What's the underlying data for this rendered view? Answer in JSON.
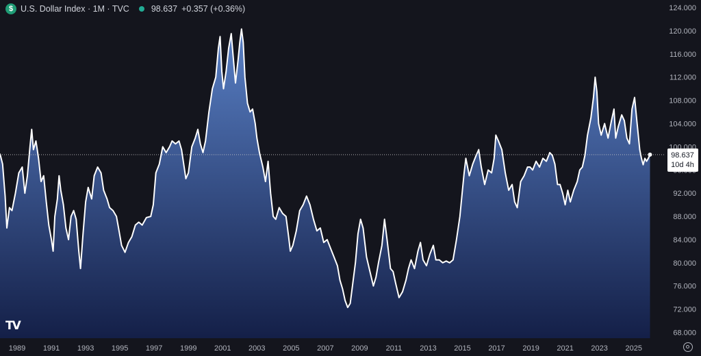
{
  "header": {
    "symbol_icon": "$",
    "title": "U.S. Dollar Index · 1M · TVC",
    "price": "98.637",
    "change": "+0.357 (+0.36%)"
  },
  "price_label": {
    "value": "98.637",
    "countdown": "10d 4h"
  },
  "logo_text": "TV",
  "colors": {
    "background": "#14151d",
    "line": "#ffffff",
    "area_top": "#5d86cf",
    "area_bottom": "#14204a",
    "axis_text": "#b2b5be",
    "status_dot": "#22ab94"
  },
  "chart_data": {
    "type": "area",
    "xlim": [
      1988.0,
      2026.85
    ],
    "ylim": [
      67.0,
      125.3
    ],
    "y_ticks": [
      "68.000",
      "72.000",
      "76.000",
      "80.000",
      "84.000",
      "88.000",
      "92.000",
      "96.000",
      "100.000",
      "104.000",
      "108.000",
      "112.000",
      "116.000",
      "120.000",
      "124.000"
    ],
    "x_ticks": [
      "1989",
      "1991",
      "1993",
      "1995",
      "1997",
      "1999",
      "2001",
      "2003",
      "2005",
      "2007",
      "2009",
      "2011",
      "2013",
      "2015",
      "2017",
      "2019",
      "2021",
      "2023",
      "2025"
    ],
    "last_value": 98.637,
    "series": [
      {
        "points": [
          [
            1988.0,
            98.8
          ],
          [
            1988.15,
            97.0
          ],
          [
            1988.3,
            91.5
          ],
          [
            1988.4,
            86.0
          ],
          [
            1988.55,
            89.5
          ],
          [
            1988.7,
            89.0
          ],
          [
            1988.9,
            92.0
          ],
          [
            1989.1,
            95.5
          ],
          [
            1989.3,
            96.5
          ],
          [
            1989.45,
            92.0
          ],
          [
            1989.6,
            95.0
          ],
          [
            1989.75,
            100.0
          ],
          [
            1989.85,
            103.0
          ],
          [
            1989.95,
            99.5
          ],
          [
            1990.1,
            101.0
          ],
          [
            1990.25,
            98.0
          ],
          [
            1990.4,
            94.0
          ],
          [
            1990.55,
            95.0
          ],
          [
            1990.7,
            90.5
          ],
          [
            1990.85,
            86.5
          ],
          [
            1991.0,
            84.0
          ],
          [
            1991.1,
            82.0
          ],
          [
            1991.2,
            88.0
          ],
          [
            1991.35,
            91.0
          ],
          [
            1991.45,
            95.0
          ],
          [
            1991.55,
            92.5
          ],
          [
            1991.7,
            90.0
          ],
          [
            1991.85,
            86.0
          ],
          [
            1992.0,
            84.0
          ],
          [
            1992.15,
            88.0
          ],
          [
            1992.3,
            89.0
          ],
          [
            1992.45,
            87.5
          ],
          [
            1992.6,
            82.0
          ],
          [
            1992.7,
            79.0
          ],
          [
            1992.85,
            85.0
          ],
          [
            1993.0,
            90.5
          ],
          [
            1993.15,
            93.0
          ],
          [
            1993.35,
            91.0
          ],
          [
            1993.5,
            95.0
          ],
          [
            1993.7,
            96.5
          ],
          [
            1993.9,
            95.5
          ],
          [
            1994.05,
            92.5
          ],
          [
            1994.25,
            91.0
          ],
          [
            1994.4,
            89.5
          ],
          [
            1994.6,
            89.0
          ],
          [
            1994.8,
            88.0
          ],
          [
            1994.95,
            85.5
          ],
          [
            1995.1,
            83.0
          ],
          [
            1995.3,
            81.8
          ],
          [
            1995.5,
            83.5
          ],
          [
            1995.7,
            84.5
          ],
          [
            1995.9,
            86.5
          ],
          [
            1996.1,
            87.0
          ],
          [
            1996.3,
            86.5
          ],
          [
            1996.55,
            87.8
          ],
          [
            1996.8,
            88.0
          ],
          [
            1996.95,
            90.0
          ],
          [
            1997.1,
            95.5
          ],
          [
            1997.3,
            97.0
          ],
          [
            1997.5,
            100.0
          ],
          [
            1997.7,
            99.0
          ],
          [
            1997.9,
            100.0
          ],
          [
            1998.05,
            101.0
          ],
          [
            1998.25,
            100.5
          ],
          [
            1998.45,
            101.0
          ],
          [
            1998.6,
            99.5
          ],
          [
            1998.75,
            96.5
          ],
          [
            1998.85,
            94.5
          ],
          [
            1999.0,
            95.5
          ],
          [
            1999.2,
            100.0
          ],
          [
            1999.4,
            101.5
          ],
          [
            1999.55,
            103.0
          ],
          [
            1999.7,
            100.5
          ],
          [
            1999.85,
            99.0
          ],
          [
            2000.0,
            101.0
          ],
          [
            2000.2,
            106.0
          ],
          [
            2000.4,
            110.0
          ],
          [
            2000.6,
            112.0
          ],
          [
            2000.75,
            117.0
          ],
          [
            2000.85,
            119.0
          ],
          [
            2000.95,
            113.0
          ],
          [
            2001.05,
            110.0
          ],
          [
            2001.2,
            113.0
          ],
          [
            2001.35,
            117.0
          ],
          [
            2001.5,
            119.5
          ],
          [
            2001.6,
            116.0
          ],
          [
            2001.75,
            111.0
          ],
          [
            2001.9,
            115.0
          ],
          [
            2002.0,
            118.0
          ],
          [
            2002.1,
            120.3
          ],
          [
            2002.2,
            118.0
          ],
          [
            2002.3,
            112.0
          ],
          [
            2002.45,
            107.5
          ],
          [
            2002.6,
            106.0
          ],
          [
            2002.75,
            106.5
          ],
          [
            2002.9,
            104.0
          ],
          [
            2003.0,
            101.5
          ],
          [
            2003.15,
            99.0
          ],
          [
            2003.35,
            96.5
          ],
          [
            2003.5,
            94.0
          ],
          [
            2003.65,
            97.5
          ],
          [
            2003.8,
            92.0
          ],
          [
            2003.95,
            88.0
          ],
          [
            2004.1,
            87.5
          ],
          [
            2004.3,
            89.5
          ],
          [
            2004.5,
            88.5
          ],
          [
            2004.7,
            88.0
          ],
          [
            2004.85,
            84.5
          ],
          [
            2004.95,
            82.0
          ],
          [
            2005.1,
            83.0
          ],
          [
            2005.3,
            85.5
          ],
          [
            2005.5,
            89.0
          ],
          [
            2005.7,
            90.0
          ],
          [
            2005.9,
            91.5
          ],
          [
            2006.1,
            90.0
          ],
          [
            2006.3,
            87.5
          ],
          [
            2006.5,
            85.5
          ],
          [
            2006.7,
            86.0
          ],
          [
            2006.9,
            83.5
          ],
          [
            2007.1,
            84.0
          ],
          [
            2007.3,
            82.5
          ],
          [
            2007.5,
            81.0
          ],
          [
            2007.7,
            79.5
          ],
          [
            2007.85,
            77.0
          ],
          [
            2008.0,
            75.5
          ],
          [
            2008.15,
            73.5
          ],
          [
            2008.3,
            72.3
          ],
          [
            2008.45,
            73.0
          ],
          [
            2008.6,
            76.5
          ],
          [
            2008.75,
            80.0
          ],
          [
            2008.9,
            85.0
          ],
          [
            2009.05,
            87.5
          ],
          [
            2009.2,
            86.0
          ],
          [
            2009.4,
            81.0
          ],
          [
            2009.6,
            78.5
          ],
          [
            2009.8,
            76.0
          ],
          [
            2009.95,
            77.5
          ],
          [
            2010.1,
            80.0
          ],
          [
            2010.3,
            83.0
          ],
          [
            2010.45,
            87.5
          ],
          [
            2010.6,
            84.0
          ],
          [
            2010.8,
            79.0
          ],
          [
            2010.95,
            78.5
          ],
          [
            2011.1,
            76.5
          ],
          [
            2011.3,
            74.0
          ],
          [
            2011.5,
            75.0
          ],
          [
            2011.7,
            77.0
          ],
          [
            2011.85,
            79.0
          ],
          [
            2012.0,
            80.5
          ],
          [
            2012.2,
            79.0
          ],
          [
            2012.4,
            82.0
          ],
          [
            2012.55,
            83.5
          ],
          [
            2012.7,
            80.5
          ],
          [
            2012.9,
            79.5
          ],
          [
            2013.1,
            81.5
          ],
          [
            2013.3,
            83.0
          ],
          [
            2013.45,
            80.5
          ],
          [
            2013.65,
            80.5
          ],
          [
            2013.85,
            80.0
          ],
          [
            2014.05,
            80.3
          ],
          [
            2014.25,
            80.0
          ],
          [
            2014.45,
            80.5
          ],
          [
            2014.65,
            84.0
          ],
          [
            2014.85,
            88.0
          ],
          [
            2015.0,
            92.5
          ],
          [
            2015.1,
            95.5
          ],
          [
            2015.2,
            98.0
          ],
          [
            2015.4,
            95.0
          ],
          [
            2015.6,
            97.0
          ],
          [
            2015.8,
            98.5
          ],
          [
            2015.95,
            99.5
          ],
          [
            2016.1,
            96.5
          ],
          [
            2016.3,
            93.5
          ],
          [
            2016.5,
            96.0
          ],
          [
            2016.7,
            95.5
          ],
          [
            2016.85,
            98.0
          ],
          [
            2016.95,
            102.0
          ],
          [
            2017.1,
            101.0
          ],
          [
            2017.3,
            99.5
          ],
          [
            2017.5,
            95.5
          ],
          [
            2017.7,
            92.5
          ],
          [
            2017.9,
            93.5
          ],
          [
            2018.05,
            90.5
          ],
          [
            2018.2,
            89.5
          ],
          [
            2018.4,
            94.0
          ],
          [
            2018.6,
            95.0
          ],
          [
            2018.8,
            96.5
          ],
          [
            2018.95,
            96.5
          ],
          [
            2019.1,
            96.0
          ],
          [
            2019.3,
            97.5
          ],
          [
            2019.5,
            96.5
          ],
          [
            2019.7,
            98.0
          ],
          [
            2019.9,
            97.5
          ],
          [
            2020.1,
            99.0
          ],
          [
            2020.25,
            98.5
          ],
          [
            2020.4,
            97.0
          ],
          [
            2020.55,
            93.5
          ],
          [
            2020.7,
            93.5
          ],
          [
            2020.85,
            92.0
          ],
          [
            2021.0,
            90.0
          ],
          [
            2021.15,
            92.5
          ],
          [
            2021.3,
            90.5
          ],
          [
            2021.5,
            92.5
          ],
          [
            2021.7,
            94.0
          ],
          [
            2021.85,
            96.0
          ],
          [
            2022.0,
            96.5
          ],
          [
            2022.15,
            98.5
          ],
          [
            2022.3,
            102.0
          ],
          [
            2022.5,
            105.0
          ],
          [
            2022.65,
            108.5
          ],
          [
            2022.75,
            112.0
          ],
          [
            2022.85,
            109.5
          ],
          [
            2022.95,
            104.0
          ],
          [
            2023.1,
            102.0
          ],
          [
            2023.3,
            104.0
          ],
          [
            2023.5,
            101.5
          ],
          [
            2023.7,
            104.5
          ],
          [
            2023.85,
            106.5
          ],
          [
            2023.95,
            101.5
          ],
          [
            2024.1,
            103.5
          ],
          [
            2024.3,
            105.5
          ],
          [
            2024.45,
            104.5
          ],
          [
            2024.6,
            101.5
          ],
          [
            2024.75,
            100.5
          ],
          [
            2024.9,
            106.5
          ],
          [
            2025.05,
            108.5
          ],
          [
            2025.2,
            104.0
          ],
          [
            2025.35,
            99.5
          ],
          [
            2025.45,
            98.0
          ],
          [
            2025.55,
            96.9
          ],
          [
            2025.65,
            98.0
          ],
          [
            2025.75,
            97.5
          ],
          [
            2025.85,
            98.0
          ],
          [
            2025.95,
            98.637
          ]
        ]
      }
    ]
  }
}
